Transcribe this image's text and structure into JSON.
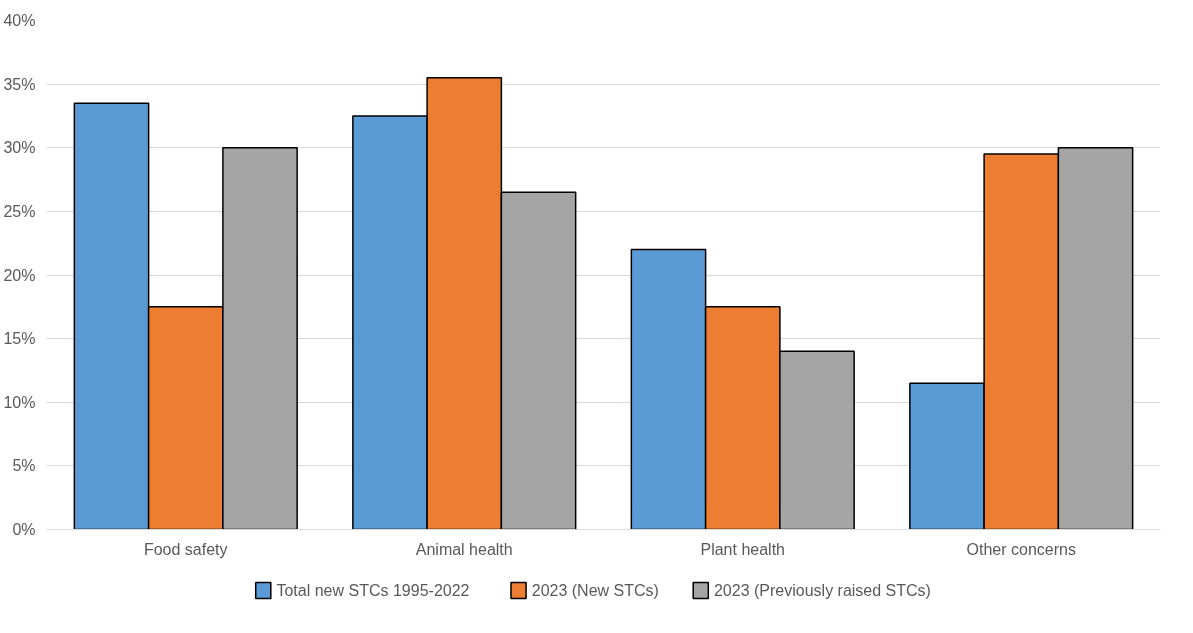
{
  "chart_data": {
    "type": "bar",
    "categories": [
      "Food safety",
      "Animal health",
      "Plant health",
      "Other concerns"
    ],
    "series": [
      {
        "name": "Total new STCs 1995-2022",
        "color": "#5b9bd5",
        "values": [
          33.5,
          32.5,
          22,
          11.5
        ]
      },
      {
        "name": "2023 (New STCs)",
        "color": "#ed7d31",
        "values": [
          17.5,
          35.5,
          17.5,
          29.5
        ]
      },
      {
        "name": "2023 (Previously raised STCs)",
        "color": "#a5a5a5",
        "values": [
          30,
          26.5,
          14,
          30
        ]
      }
    ],
    "ylim": [
      0,
      40
    ],
    "yticks": [
      {
        "value": 0,
        "label": "0%"
      },
      {
        "value": 5,
        "label": "5%"
      },
      {
        "value": 10,
        "label": "10%"
      },
      {
        "value": 15,
        "label": "15%"
      },
      {
        "value": 20,
        "label": "20%"
      },
      {
        "value": 25,
        "label": "25%"
      },
      {
        "value": 30,
        "label": "30%"
      },
      {
        "value": 35,
        "label": "35%"
      },
      {
        "value": 40,
        "label": "40%"
      }
    ],
    "grid": "y",
    "legend": "bottom"
  }
}
